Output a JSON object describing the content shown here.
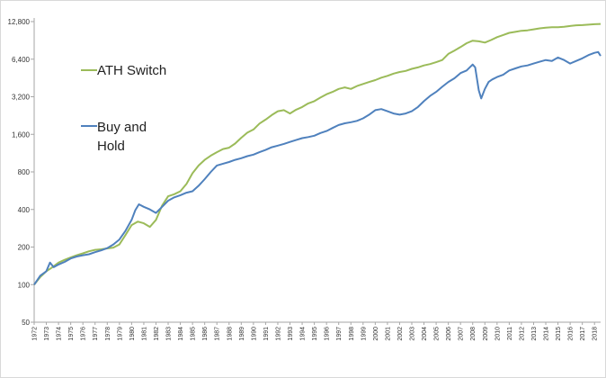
{
  "chart_data": {
    "type": "line",
    "title": "",
    "xlabel": "",
    "ylabel": "",
    "y_scale": "log2",
    "ylim": [
      50,
      12800
    ],
    "xlim": [
      1972,
      2018.5
    ],
    "grid": false,
    "legend_placement": "left",
    "y_ticks": [
      "50",
      "100",
      "200",
      "400",
      "800",
      "1,600",
      "3,200",
      "6,400",
      "12,800"
    ],
    "y_tick_values": [
      50,
      100,
      200,
      400,
      800,
      1600,
      3200,
      6400,
      12800
    ],
    "x_ticks": [
      "1972",
      "1973",
      "1974",
      "1975",
      "1976",
      "1977",
      "1978",
      "1979",
      "1980",
      "1981",
      "1982",
      "1983",
      "1984",
      "1985",
      "1986",
      "1987",
      "1988",
      "1989",
      "1990",
      "1991",
      "1992",
      "1993",
      "1994",
      "1995",
      "1996",
      "1997",
      "1998",
      "1999",
      "2000",
      "2001",
      "2002",
      "2003",
      "2004",
      "2005",
      "2006",
      "2007",
      "2008",
      "2009",
      "2010",
      "2011",
      "2012",
      "2013",
      "2014",
      "2015",
      "2016",
      "2017",
      "2018"
    ],
    "series": [
      {
        "name": "ATH Switch",
        "color": "#9bbb59",
        "x": [
          1972.0,
          1972.5,
          1973.0,
          1973.5,
          1974.0,
          1974.5,
          1975.0,
          1975.5,
          1976.0,
          1976.5,
          1977.0,
          1977.5,
          1978.0,
          1978.5,
          1979.0,
          1979.5,
          1980.0,
          1980.5,
          1981.0,
          1981.5,
          1982.0,
          1982.5,
          1983.0,
          1983.5,
          1984.0,
          1984.5,
          1985.0,
          1985.5,
          1986.0,
          1986.5,
          1987.0,
          1987.5,
          1988.0,
          1988.5,
          1989.0,
          1989.5,
          1990.0,
          1990.5,
          1991.0,
          1991.5,
          1992.0,
          1992.5,
          1993.0,
          1993.5,
          1994.0,
          1994.5,
          1995.0,
          1995.5,
          1996.0,
          1996.5,
          1997.0,
          1997.5,
          1998.0,
          1998.5,
          1999.0,
          1999.5,
          2000.0,
          2000.5,
          2001.0,
          2001.5,
          2002.0,
          2002.5,
          2003.0,
          2003.5,
          2004.0,
          2004.5,
          2005.0,
          2005.5,
          2006.0,
          2006.5,
          2007.0,
          2007.5,
          2008.0,
          2008.5,
          2009.0,
          2009.5,
          2010.0,
          2010.5,
          2011.0,
          2011.5,
          2012.0,
          2012.5,
          2013.0,
          2013.5,
          2014.0,
          2014.5,
          2015.0,
          2015.5,
          2016.0,
          2016.5,
          2017.0,
          2017.5,
          2018.0,
          2018.5
        ],
        "y": [
          100,
          115,
          128,
          138,
          150,
          158,
          165,
          172,
          178,
          185,
          190,
          192,
          195,
          198,
          210,
          250,
          300,
          320,
          310,
          290,
          330,
          430,
          510,
          530,
          560,
          640,
          780,
          900,
          1000,
          1080,
          1150,
          1220,
          1250,
          1350,
          1500,
          1650,
          1750,
          1950,
          2100,
          2280,
          2450,
          2500,
          2350,
          2520,
          2650,
          2830,
          2950,
          3150,
          3350,
          3500,
          3700,
          3800,
          3700,
          3900,
          4050,
          4200,
          4350,
          4550,
          4700,
          4900,
          5050,
          5150,
          5350,
          5500,
          5700,
          5850,
          6050,
          6300,
          7050,
          7500,
          8000,
          8600,
          9000,
          8900,
          8700,
          9100,
          9600,
          10000,
          10400,
          10600,
          10800,
          10900,
          11100,
          11300,
          11450,
          11550,
          11550,
          11650,
          11800,
          11950,
          12000,
          12100,
          12200,
          12250
        ]
      },
      {
        "name": "Buy and Hold",
        "color": "#4f81bd",
        "x": [
          1972.0,
          1972.5,
          1973.0,
          1973.3,
          1973.6,
          1974.0,
          1974.5,
          1975.0,
          1975.5,
          1976.0,
          1976.5,
          1977.0,
          1977.5,
          1978.0,
          1978.5,
          1979.0,
          1979.5,
          1980.0,
          1980.3,
          1980.6,
          1981.0,
          1981.5,
          1982.0,
          1982.5,
          1983.0,
          1983.5,
          1984.0,
          1984.5,
          1985.0,
          1985.5,
          1986.0,
          1986.5,
          1987.0,
          1987.5,
          1988.0,
          1988.5,
          1989.0,
          1989.5,
          1990.0,
          1990.5,
          1991.0,
          1991.5,
          1992.0,
          1992.5,
          1993.0,
          1993.5,
          1994.0,
          1994.5,
          1995.0,
          1995.5,
          1996.0,
          1996.5,
          1997.0,
          1997.5,
          1998.0,
          1998.5,
          1999.0,
          1999.5,
          2000.0,
          2000.5,
          2001.0,
          2001.5,
          2002.0,
          2002.5,
          2003.0,
          2003.5,
          2004.0,
          2004.5,
          2005.0,
          2005.5,
          2006.0,
          2006.5,
          2007.0,
          2007.5,
          2008.0,
          2008.2,
          2008.5,
          2008.7,
          2009.0,
          2009.3,
          2009.6,
          2010.0,
          2010.5,
          2011.0,
          2011.5,
          2012.0,
          2012.5,
          2013.0,
          2013.5,
          2014.0,
          2014.5,
          2015.0,
          2015.5,
          2016.0,
          2016.5,
          2017.0,
          2017.5,
          2018.0,
          2018.3,
          2018.5
        ],
        "y": [
          100,
          118,
          128,
          150,
          138,
          145,
          152,
          162,
          168,
          172,
          175,
          182,
          188,
          196,
          210,
          230,
          270,
          330,
          395,
          440,
          420,
          400,
          375,
          420,
          470,
          500,
          520,
          545,
          560,
          620,
          700,
          800,
          900,
          930,
          960,
          1000,
          1030,
          1070,
          1100,
          1150,
          1200,
          1260,
          1300,
          1340,
          1390,
          1440,
          1490,
          1520,
          1560,
          1640,
          1700,
          1800,
          1900,
          1960,
          2000,
          2050,
          2150,
          2300,
          2500,
          2550,
          2450,
          2350,
          2300,
          2350,
          2450,
          2650,
          2950,
          3250,
          3500,
          3850,
          4200,
          4500,
          4950,
          5200,
          5800,
          5500,
          3600,
          3100,
          3700,
          4200,
          4400,
          4600,
          4800,
          5200,
          5400,
          5600,
          5700,
          5900,
          6100,
          6300,
          6200,
          6600,
          6300,
          5900,
          6200,
          6500,
          6900,
          7200,
          7300,
          6800
        ]
      }
    ]
  }
}
